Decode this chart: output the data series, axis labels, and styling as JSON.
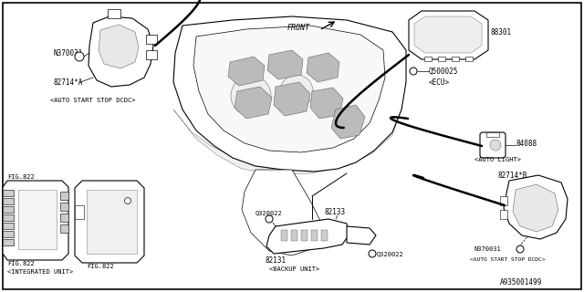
{
  "bg_color": "#ffffff",
  "part_number": "A935001499",
  "front_label": "FRONT",
  "line_color": "#000000",
  "components": {
    "top_left_motor": {
      "label1": "N370031",
      "label2": "82714*A",
      "desc": "<AUTO START STOP DCDC>"
    },
    "ecu": {
      "label1": "88301",
      "label2": "Q500025",
      "desc": "<ECU>"
    },
    "auto_light": {
      "label1": "84088",
      "desc": "<AUTO LIGHT>"
    },
    "bottom_right_motor": {
      "label1": "82714*B",
      "label2": "N370031",
      "desc": "<AUTO START STOP DCDC>"
    },
    "integrated": {
      "label1": "FIG.822",
      "label2": "FIG.822",
      "label3": "FIG.822",
      "desc": "<INTEGRATED UNIT>"
    },
    "backup": {
      "label1": "Q320022",
      "label2": "82131",
      "label3": "82133",
      "label4": "Q320022",
      "desc": "<BACKUP UNIT>"
    }
  }
}
